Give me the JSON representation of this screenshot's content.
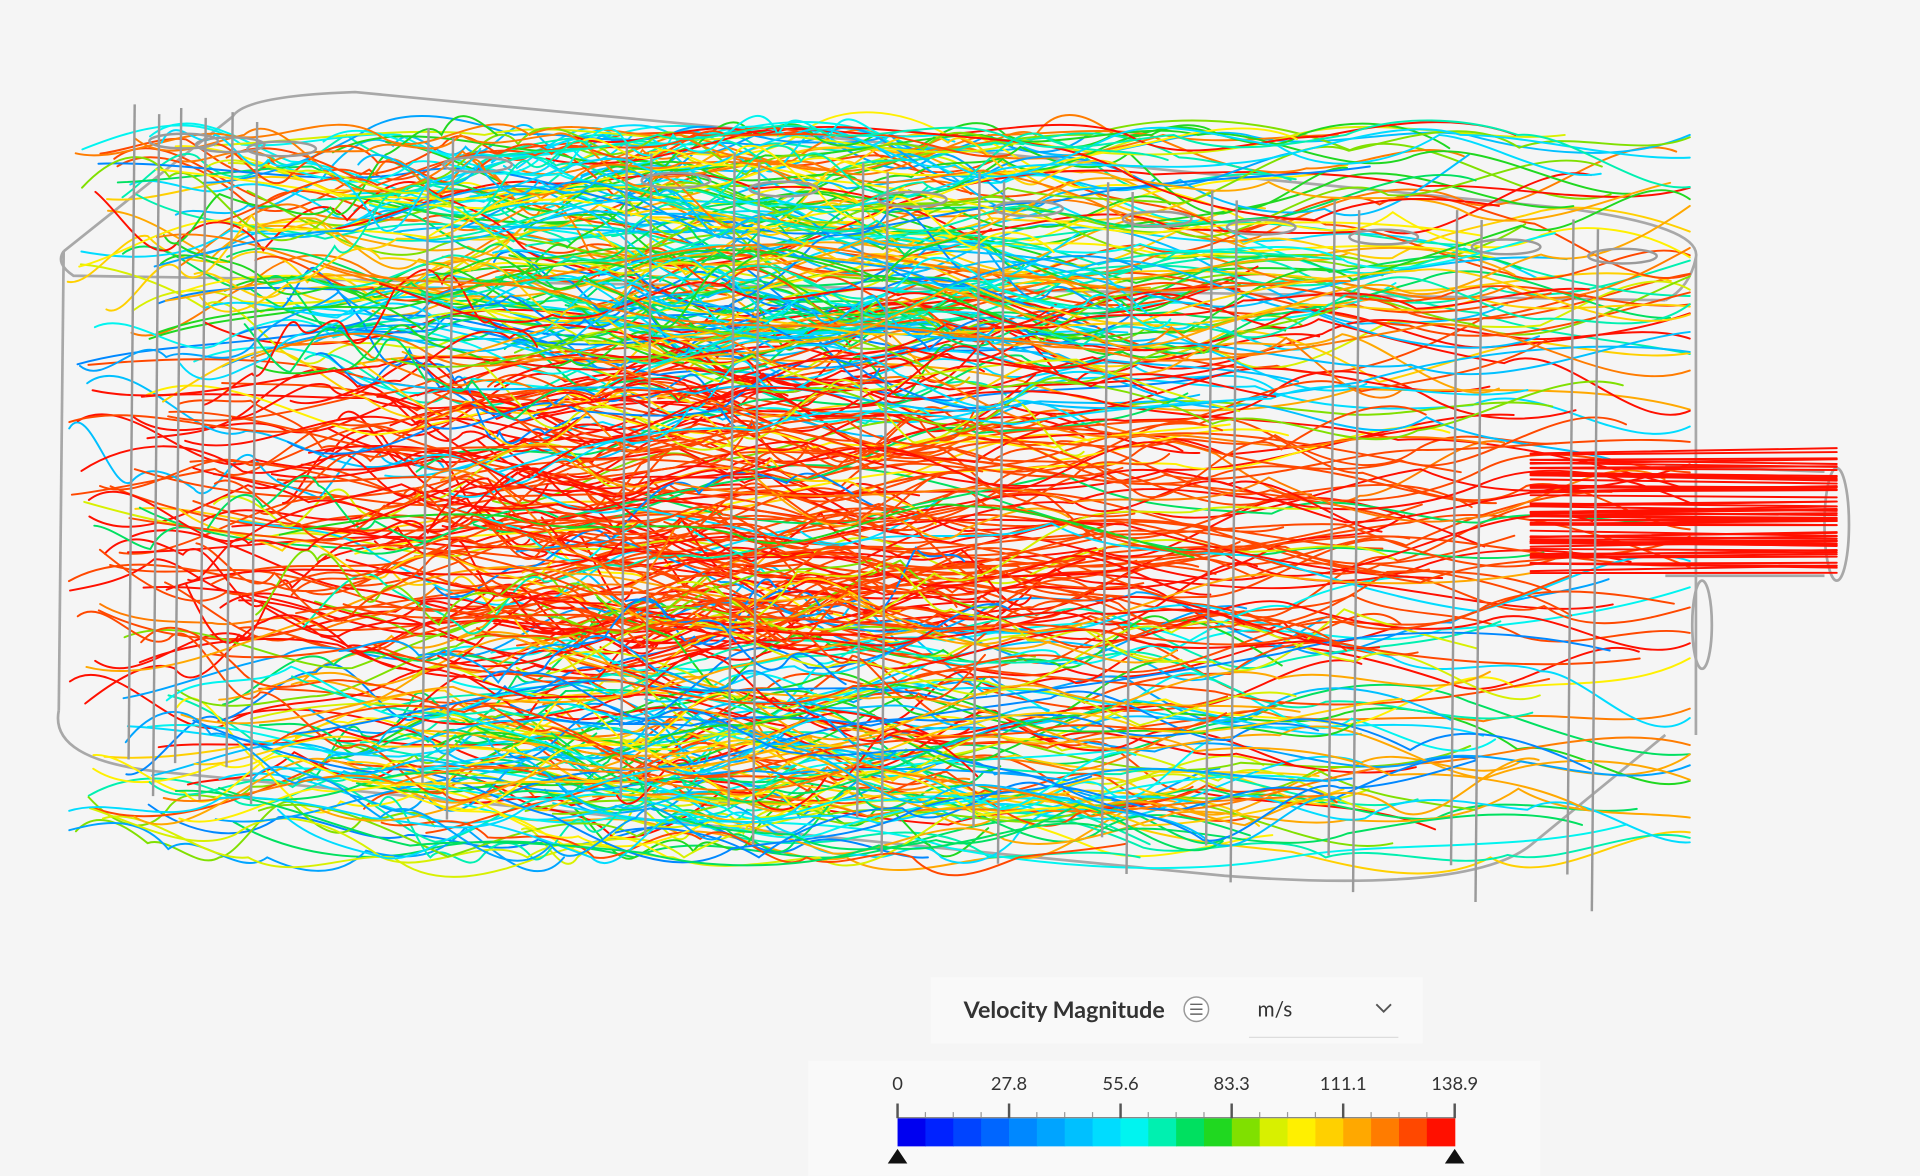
{
  "legend": {
    "title": "Velocity Magnitude",
    "unit": "m/s",
    "ticks": [
      0,
      27.8,
      55.6,
      83.3,
      111.1,
      138.9
    ],
    "colors": [
      "#0000f0",
      "#0022ff",
      "#0044ff",
      "#0066ff",
      "#0088ff",
      "#00a4ff",
      "#00c0ff",
      "#00dcff",
      "#00f4f0",
      "#00f0b0",
      "#00e060",
      "#20d820",
      "#80e000",
      "#d8f000",
      "#fff000",
      "#ffd000",
      "#ffa800",
      "#ff7c00",
      "#ff4800",
      "#ff1000"
    ]
  }
}
